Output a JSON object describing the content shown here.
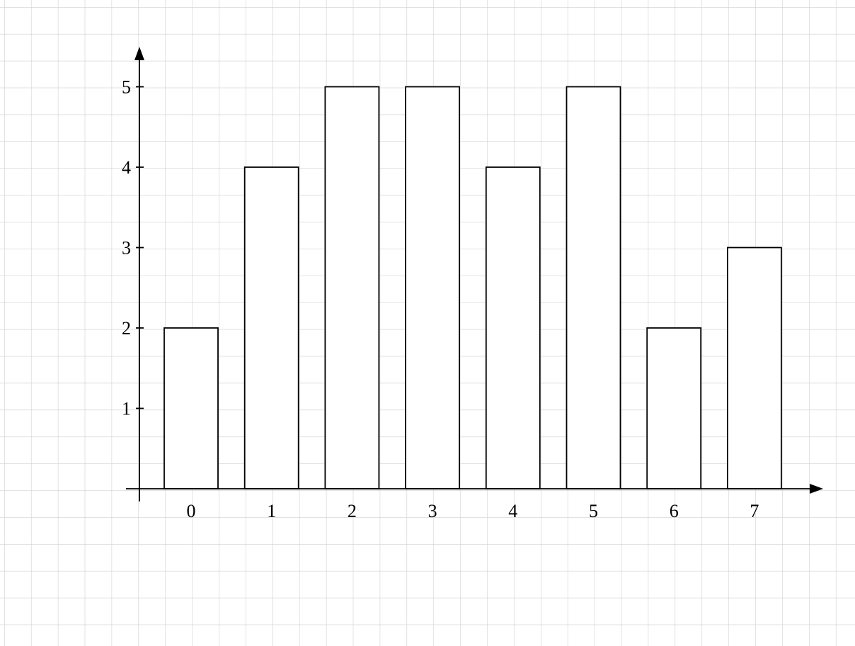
{
  "chart_data": {
    "type": "bar",
    "title": "",
    "xlabel": "",
    "ylabel": "",
    "categories": [
      "0",
      "1",
      "2",
      "3",
      "4",
      "5",
      "6",
      "7"
    ],
    "values": [
      2,
      4,
      5,
      5,
      4,
      5,
      2,
      3
    ],
    "yticks": [
      "1",
      "2",
      "3",
      "4",
      "5"
    ],
    "ylim": [
      0,
      5
    ],
    "grid": true,
    "legend": "none",
    "colors": {
      "bar_fill": "#ffffff",
      "bar_stroke": "#000000",
      "grid": "#cfcfcf",
      "axis": "#000000"
    }
  }
}
